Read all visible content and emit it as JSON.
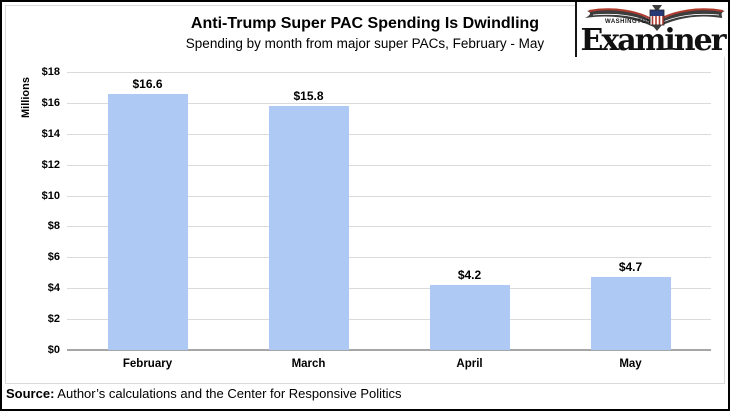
{
  "logo": {
    "top_text": "WASHINGTON",
    "name": "Examiner"
  },
  "chart_data": {
    "type": "bar",
    "title": "Anti-Trump Super PAC Spending Is Dwindling",
    "subtitle": "Spending by month from major super PACs, February - May",
    "categories": [
      "February",
      "March",
      "April",
      "May"
    ],
    "values": [
      16.6,
      15.8,
      4.2,
      4.7
    ],
    "value_labels": [
      "$16.6",
      "$15.8",
      "$4.2",
      "$4.7"
    ],
    "xlabel": "",
    "ylabel": "Millions",
    "ylim": [
      0,
      18
    ],
    "ytick_step": 2,
    "ytick_labels": [
      "$0",
      "$2",
      "$4",
      "$6",
      "$8",
      "$10",
      "$12",
      "$14",
      "$16",
      "$18"
    ],
    "grid": true,
    "legend": false,
    "bar_color": "#AEC9F3"
  },
  "footer": {
    "source_label": "Source:",
    "source_text": " Author’s calculations and the Center for Responsive Politics"
  },
  "colors": {
    "bar": "#AEC9F3",
    "gridline": "#DADADA",
    "axis": "#A6A6A6",
    "frame_border": "#D9D9D9",
    "page_border": "#000000",
    "text": "#000000",
    "logo_red": "#B03A2E",
    "logo_blue": "#273A77"
  }
}
